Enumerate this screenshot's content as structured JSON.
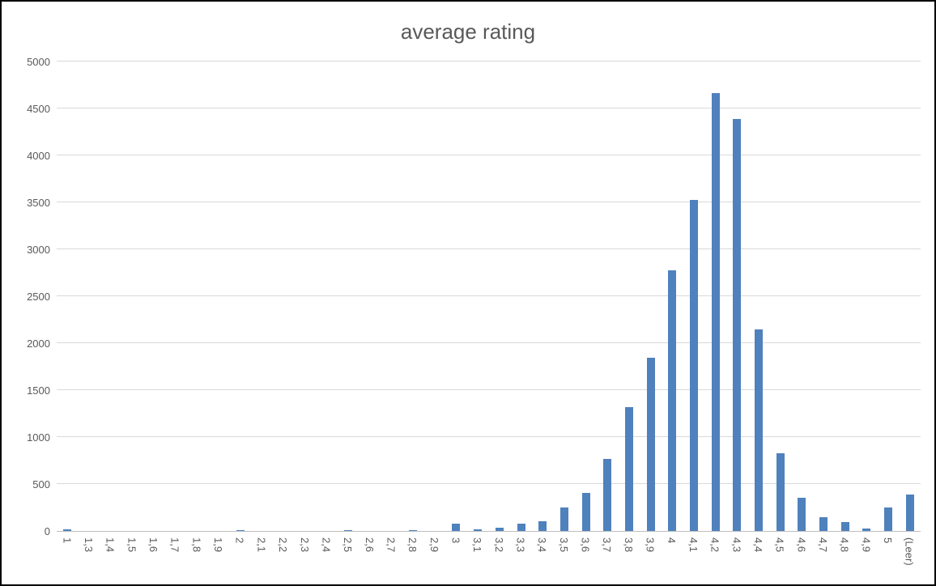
{
  "chart": {
    "colors": {
      "bar_fill": "#4f81bd",
      "title_text": "#595959",
      "axis_text": "#595959",
      "gridline": "#d9d9d9",
      "axis_line": "#bfbfbf",
      "frame_border": "#000000",
      "background": "#ffffff"
    }
  },
  "chart_data": {
    "type": "bar",
    "title": "average rating",
    "xlabel": "",
    "ylabel": "",
    "ylim": [
      0,
      5000
    ],
    "yticks": [
      0,
      500,
      1000,
      1500,
      2000,
      2500,
      3000,
      3500,
      4000,
      4500,
      5000
    ],
    "grid": true,
    "legend": false,
    "categories": [
      "1",
      "1,3",
      "1,4",
      "1,5",
      "1,6",
      "1,7",
      "1,8",
      "1,9",
      "2",
      "2,1",
      "2,2",
      "2,3",
      "2,4",
      "2,5",
      "2,6",
      "2,7",
      "2,8",
      "2,9",
      "3",
      "3,1",
      "3,2",
      "3,3",
      "3,4",
      "3,5",
      "3,6",
      "3,7",
      "3,8",
      "3,9",
      "4",
      "4,1",
      "4,2",
      "4,3",
      "4,4",
      "4,5",
      "4,6",
      "4,7",
      "4,8",
      "4,9",
      "5",
      "(Leer)"
    ],
    "values": [
      25,
      5,
      5,
      5,
      5,
      5,
      5,
      5,
      15,
      5,
      5,
      5,
      5,
      15,
      5,
      5,
      15,
      5,
      85,
      25,
      35,
      85,
      110,
      255,
      410,
      770,
      1320,
      1845,
      2780,
      3530,
      4670,
      4390,
      2155,
      830,
      360,
      155,
      100,
      30,
      255,
      390
    ]
  }
}
